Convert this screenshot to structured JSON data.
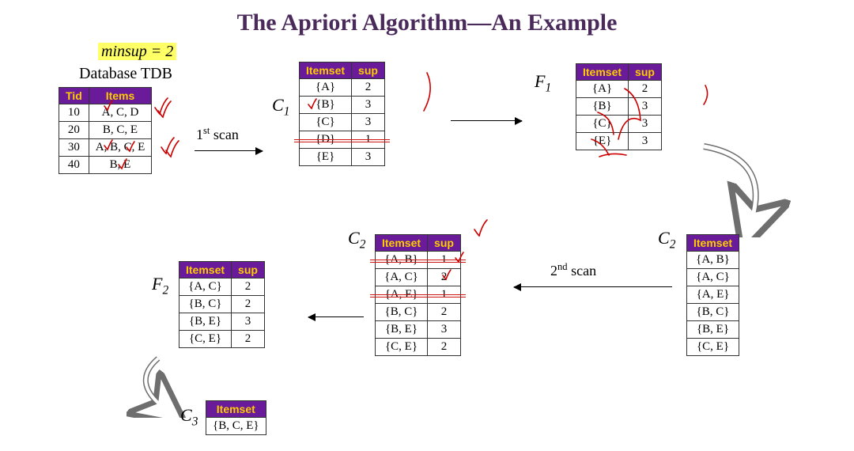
{
  "colors": {
    "title": "#4a2a5a",
    "header_bg": "#6a1b9a",
    "header_text": "#ffcc00",
    "highlight_bg": "#ffff66",
    "strike": "#d01515",
    "red_mark": "#cc0000",
    "border": "#333333",
    "bg": "#ffffff"
  },
  "fonts": {
    "title_size": 30,
    "body_size": 18,
    "table_size": 15
  },
  "title": "The Apriori Algorithm—An Example",
  "minsup_text": "minsup = 2",
  "db_label": "Database TDB",
  "scan1": "1",
  "scan1_suffix": "st",
  "scan1_word": " scan",
  "scan2": "2",
  "scan2_suffix": "nd",
  "scan2_word": " scan",
  "labels": {
    "C1": "C",
    "C1_sub": "1",
    "F1": "F",
    "F1_sub": "1",
    "C2a": "C",
    "C2a_sub": "2",
    "C2b": "C",
    "C2b_sub": "2",
    "F2": "F",
    "F2_sub": "2",
    "C3": "C",
    "C3_sub": "3"
  },
  "tdb": {
    "headers": [
      "Tid",
      "Items"
    ],
    "rows": [
      [
        "10",
        "A, C, D"
      ],
      [
        "20",
        "B, C, E"
      ],
      [
        "30",
        "A, B, C, E"
      ],
      [
        "40",
        "B, E"
      ]
    ]
  },
  "C1": {
    "headers": [
      "Itemset",
      "sup"
    ],
    "rows": [
      [
        "{A}",
        "2"
      ],
      [
        "{B}",
        "3"
      ],
      [
        "{C}",
        "3"
      ],
      [
        "{D}",
        "1"
      ],
      [
        "{E}",
        "3"
      ]
    ],
    "struck_rows": [
      3
    ]
  },
  "F1": {
    "headers": [
      "Itemset",
      "sup"
    ],
    "rows": [
      [
        "{A}",
        "2"
      ],
      [
        "{B}",
        "3"
      ],
      [
        "{C}",
        "3"
      ],
      [
        "{E}",
        "3"
      ]
    ]
  },
  "C2b": {
    "headers": [
      "Itemset"
    ],
    "rows": [
      [
        "{A, B}"
      ],
      [
        "{A, C}"
      ],
      [
        "{A, E}"
      ],
      [
        "{B, C}"
      ],
      [
        "{B, E}"
      ],
      [
        "{C, E}"
      ]
    ]
  },
  "C2a": {
    "headers": [
      "Itemset",
      "sup"
    ],
    "rows": [
      [
        "{A, B}",
        "1"
      ],
      [
        "{A, C}",
        "2"
      ],
      [
        "{A, E}",
        "1"
      ],
      [
        "{B, C}",
        "2"
      ],
      [
        "{B, E}",
        "3"
      ],
      [
        "{C, E}",
        "2"
      ]
    ],
    "struck_rows": [
      0,
      2
    ]
  },
  "F2": {
    "headers": [
      "Itemset",
      "sup"
    ],
    "rows": [
      [
        "{A, C}",
        "2"
      ],
      [
        "{B, C}",
        "2"
      ],
      [
        "{B, E}",
        "3"
      ],
      [
        "{C, E}",
        "2"
      ]
    ]
  },
  "C3": {
    "headers": [
      "Itemset"
    ],
    "rows": [
      [
        "{B, C, E}"
      ]
    ]
  }
}
